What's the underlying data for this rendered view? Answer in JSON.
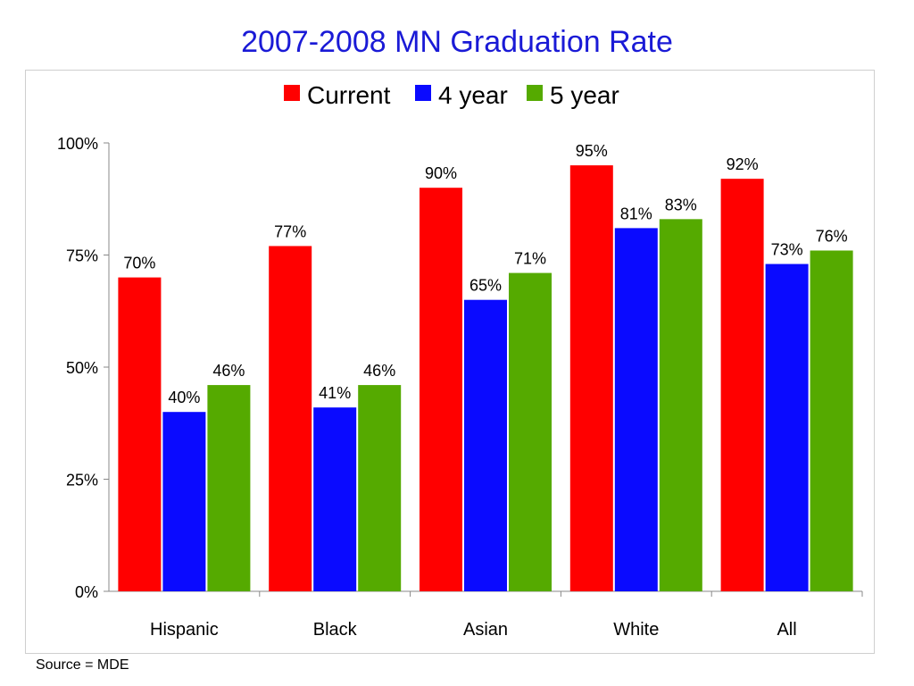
{
  "title": "2007-2008 MN Graduation Rate",
  "source": "Source = MDE",
  "colors": {
    "current": "#ff0000",
    "four_year": "#0a0aff",
    "five_year": "#55aa00",
    "axis": "#888888"
  },
  "chart_data": {
    "type": "bar",
    "title": "",
    "xlabel": "",
    "ylabel": "",
    "ylim": [
      0,
      100
    ],
    "yticks": [
      "0%",
      "25%",
      "50%",
      "75%",
      "100%"
    ],
    "grid": false,
    "legend_position": "top",
    "categories": [
      "Hispanic",
      "Black",
      "Asian",
      "White",
      "All"
    ],
    "series": [
      {
        "name": "Current",
        "color": "#ff0000",
        "values": [
          70,
          77,
          90,
          95,
          92
        ],
        "labels": [
          "70%",
          "77%",
          "90%",
          "95%",
          "92%"
        ]
      },
      {
        "name": "4 year",
        "color": "#0a0aff",
        "values": [
          40,
          41,
          65,
          81,
          73
        ],
        "labels": [
          "40%",
          "41%",
          "65%",
          "81%",
          "73%"
        ]
      },
      {
        "name": "5 year",
        "color": "#55aa00",
        "values": [
          46,
          46,
          71,
          83,
          76
        ],
        "labels": [
          "46%",
          "46%",
          "71%",
          "83%",
          "76%"
        ]
      }
    ]
  }
}
